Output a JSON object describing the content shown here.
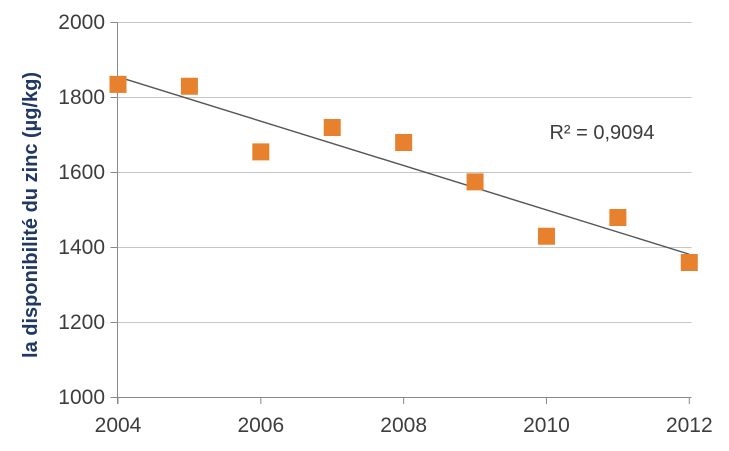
{
  "chart_data": {
    "type": "scatter",
    "title": "",
    "xlabel": "",
    "ylabel": "la disponibilité du zinc (µg/kg)",
    "xlim": [
      2004,
      2012
    ],
    "ylim": [
      1000,
      2000
    ],
    "x_ticks": [
      2004,
      2006,
      2008,
      2010,
      2012
    ],
    "y_ticks": [
      1000,
      1200,
      1400,
      1600,
      1800,
      2000
    ],
    "grid": true,
    "legend": "none",
    "series": [
      {
        "name": "disponibilité du zinc",
        "marker": "square",
        "x": [
          2004,
          2005,
          2006,
          2007,
          2008,
          2009,
          2010,
          2011,
          2012
        ],
        "y": [
          1835,
          1830,
          1655,
          1720,
          1680,
          1575,
          1430,
          1480,
          1360
        ]
      }
    ],
    "trendline": {
      "type": "linear",
      "x1": 2004,
      "y1": 1855,
      "x2": 2012,
      "y2": 1382
    },
    "annotation": {
      "text": "R² = 0,9094"
    },
    "colors": {
      "marker": "#E8812D",
      "trendline": "#555555",
      "gridline": "#C6C6C6",
      "axis_line": "#898989",
      "tick_text": "#3D3D3D",
      "axis_title_text": "#1F3864",
      "annotation_text": "#3D3D3D",
      "background": "#FFFFFF"
    }
  }
}
